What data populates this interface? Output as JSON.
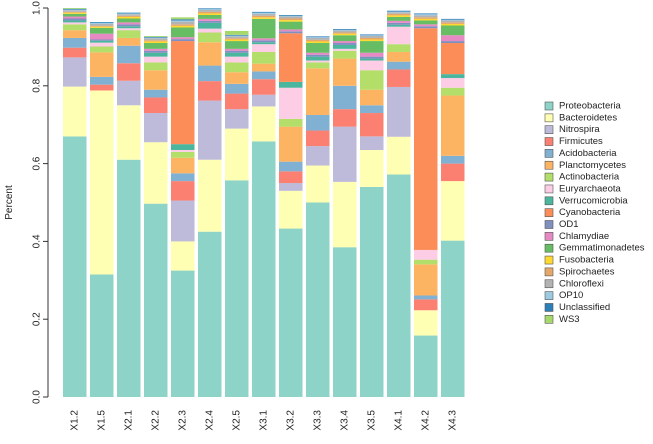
{
  "chart_data": {
    "type": "stacked-bar",
    "title": "",
    "ylabel": "Percent",
    "xlabel": "",
    "ylim": [
      0,
      1
    ],
    "yticks": [
      "0.0",
      "0.2",
      "0.4",
      "0.6",
      "0.8",
      "1.0"
    ],
    "categories": [
      "X1.2",
      "X1.5",
      "X2.1",
      "X2.2",
      "X2.3",
      "X2.4",
      "X2.5",
      "X3.1",
      "X3.2",
      "X3.3",
      "X3.4",
      "X3.5",
      "X4.1",
      "X4.2",
      "X4.3"
    ],
    "series": [
      {
        "name": "Proteobacteria",
        "color": "#8dd3c7",
        "values": [
          0.67,
          0.315,
          0.61,
          0.497,
          0.325,
          0.425,
          0.557,
          0.657,
          0.433,
          0.5,
          0.385,
          0.54,
          0.572,
          0.158,
          0.402
        ]
      },
      {
        "name": "Bacteroidetes",
        "color": "#ffffb3",
        "values": [
          0.128,
          0.473,
          0.14,
          0.158,
          0.075,
          0.185,
          0.133,
          0.09,
          0.097,
          0.095,
          0.168,
          0.095,
          0.097,
          0.065,
          0.153
        ]
      },
      {
        "name": "Nitrospira",
        "color": "#bebada",
        "values": [
          0.075,
          0.0,
          0.063,
          0.075,
          0.105,
          0.152,
          0.05,
          0.03,
          0.02,
          0.05,
          0.142,
          0.035,
          0.128,
          0.0,
          0.0
        ]
      },
      {
        "name": "Firmicutes",
        "color": "#fb8072",
        "values": [
          0.025,
          0.015,
          0.045,
          0.04,
          0.05,
          0.05,
          0.04,
          0.04,
          0.03,
          0.04,
          0.045,
          0.06,
          0.045,
          0.028,
          0.045
        ]
      },
      {
        "name": "Acidobacteria",
        "color": "#80b1d3",
        "values": [
          0.025,
          0.02,
          0.045,
          0.02,
          0.02,
          0.04,
          0.025,
          0.02,
          0.025,
          0.04,
          0.06,
          0.02,
          0.02,
          0.01,
          0.02
        ]
      },
      {
        "name": "Planctomycetes",
        "color": "#fdb462",
        "values": [
          0.02,
          0.063,
          0.02,
          0.05,
          0.04,
          0.06,
          0.03,
          0.02,
          0.09,
          0.12,
          0.07,
          0.04,
          0.025,
          0.08,
          0.155
        ]
      },
      {
        "name": "Actinobacteria",
        "color": "#b3de69",
        "values": [
          0.015,
          0.015,
          0.02,
          0.02,
          0.015,
          0.025,
          0.025,
          0.03,
          0.02,
          0.015,
          0.02,
          0.05,
          0.02,
          0.012,
          0.02
        ]
      },
      {
        "name": "Euryarchaeota",
        "color": "#fccde5",
        "values": [
          0.005,
          0.01,
          0.005,
          0.015,
          0.005,
          0.01,
          0.015,
          0.02,
          0.08,
          0.005,
          0.005,
          0.025,
          0.045,
          0.025,
          0.025
        ]
      },
      {
        "name": "Verrucomicrobia",
        "color": "#4ab69e",
        "values": [
          0.005,
          0.005,
          0.005,
          0.01,
          0.015,
          0.015,
          0.01,
          0.005,
          0.015,
          0.01,
          0.01,
          0.005,
          0.005,
          0.0,
          0.01
        ]
      },
      {
        "name": "Cyanobacteria",
        "color": "#fc8d59",
        "values": [
          0.0,
          0.0,
          0.0,
          0.0,
          0.265,
          0.0,
          0.0,
          0.0,
          0.125,
          0.0,
          0.0,
          0.0,
          0.0,
          0.57,
          0.08
        ]
      },
      {
        "name": "OD1",
        "color": "#7f8fbf",
        "values": [
          0.005,
          0.003,
          0.005,
          0.005,
          0.005,
          0.005,
          0.005,
          0.005,
          0.005,
          0.005,
          0.005,
          0.005,
          0.005,
          0.005,
          0.005
        ]
      },
      {
        "name": "Chlamydiae",
        "color": "#e78ac3",
        "values": [
          0.005,
          0.015,
          0.005,
          0.005,
          0.005,
          0.005,
          0.005,
          0.005,
          0.005,
          0.005,
          0.005,
          0.01,
          0.005,
          0.005,
          0.015
        ]
      },
      {
        "name": "Gemmatimonadetes",
        "color": "#66bd63",
        "values": [
          0.007,
          0.015,
          0.01,
          0.015,
          0.025,
          0.01,
          0.02,
          0.05,
          0.02,
          0.025,
          0.015,
          0.03,
          0.01,
          0.01,
          0.025
        ]
      },
      {
        "name": "Fusobacteria",
        "color": "#ffd92f",
        "values": [
          0.003,
          0.003,
          0.004,
          0.004,
          0.004,
          0.004,
          0.004,
          0.004,
          0.004,
          0.004,
          0.004,
          0.004,
          0.004,
          0.004,
          0.004
        ]
      },
      {
        "name": "Spirochaetes",
        "color": "#e5a86a",
        "values": [
          0.002,
          0.002,
          0.003,
          0.003,
          0.004,
          0.004,
          0.003,
          0.004,
          0.004,
          0.004,
          0.003,
          0.004,
          0.004,
          0.004,
          0.004
        ]
      },
      {
        "name": "Chloroflexi",
        "color": "#b3b3b3",
        "values": [
          0.004,
          0.005,
          0.004,
          0.005,
          0.007,
          0.005,
          0.005,
          0.005,
          0.005,
          0.005,
          0.005,
          0.005,
          0.004,
          0.005,
          0.005
        ]
      },
      {
        "name": "OP10",
        "color": "#9ecae1",
        "values": [
          0.002,
          0.003,
          0.002,
          0.002,
          0.003,
          0.002,
          0.002,
          0.003,
          0.002,
          0.002,
          0.002,
          0.002,
          0.002,
          0.003,
          0.002
        ]
      },
      {
        "name": "Unclassified",
        "color": "#2c7fb8",
        "values": [
          0.002,
          0.002,
          0.002,
          0.002,
          0.003,
          0.002,
          0.002,
          0.002,
          0.002,
          0.002,
          0.002,
          0.002,
          0.002,
          0.002,
          0.002
        ]
      },
      {
        "name": "WS3",
        "color": "#a6d96a",
        "values": [
          0.002,
          0.0,
          0.0,
          0.002,
          0.005,
          0.0,
          0.01,
          0.0,
          0.0,
          0.0,
          0.0,
          0.0,
          0.0,
          0.0,
          0.0
        ]
      }
    ]
  }
}
